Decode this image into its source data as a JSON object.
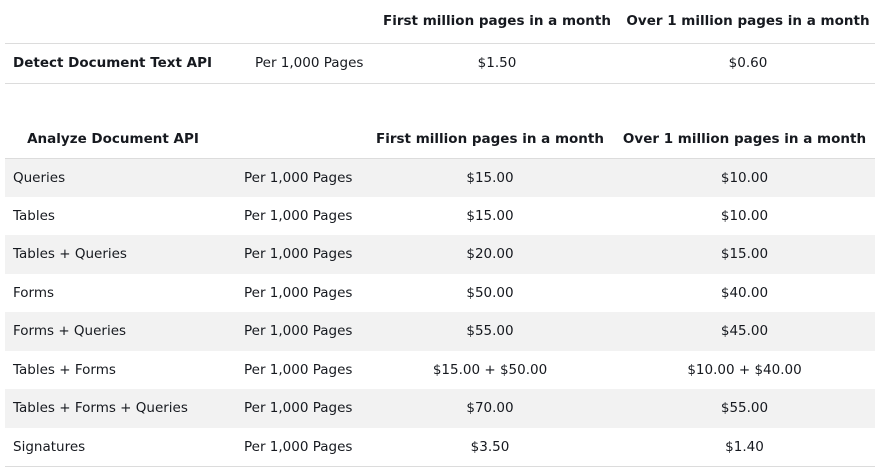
{
  "detect_table": {
    "headers": [
      "",
      "",
      "First million pages in a month",
      "Over 1 million pages in a month"
    ],
    "row": {
      "api": "Detect Document Text API",
      "unit": "Per 1,000 Pages",
      "first": "$1.50",
      "over": "$0.60"
    }
  },
  "analyze_table": {
    "headers": [
      "Analyze Document API",
      "",
      "First million pages in a month",
      "Over 1 million pages in a month"
    ],
    "rows": [
      {
        "feature": "Queries",
        "unit": "Per 1,000 Pages",
        "first": "$15.00",
        "over": "$10.00"
      },
      {
        "feature": "Tables",
        "unit": "Per 1,000 Pages",
        "first": "$15.00",
        "over": "$10.00"
      },
      {
        "feature": "Tables + Queries",
        "unit": "Per 1,000 Pages",
        "first": "$20.00",
        "over": "$15.00"
      },
      {
        "feature": "Forms",
        "unit": "Per 1,000 Pages",
        "first": "$50.00",
        "over": "$40.00"
      },
      {
        "feature": "Forms + Queries",
        "unit": "Per 1,000 Pages",
        "first": "$55.00",
        "over": "$45.00"
      },
      {
        "feature": "Tables + Forms",
        "unit": "Per 1,000 Pages",
        "first": "$15.00 + $50.00",
        "over": "$10.00 + $40.00"
      },
      {
        "feature": "Tables + Forms + Queries",
        "unit": "Per 1,000 Pages",
        "first": "$70.00",
        "over": "$55.00"
      },
      {
        "feature": "Signatures",
        "unit": "Per 1,000 Pages",
        "first": "$3.50",
        "over": "$1.40"
      }
    ]
  }
}
